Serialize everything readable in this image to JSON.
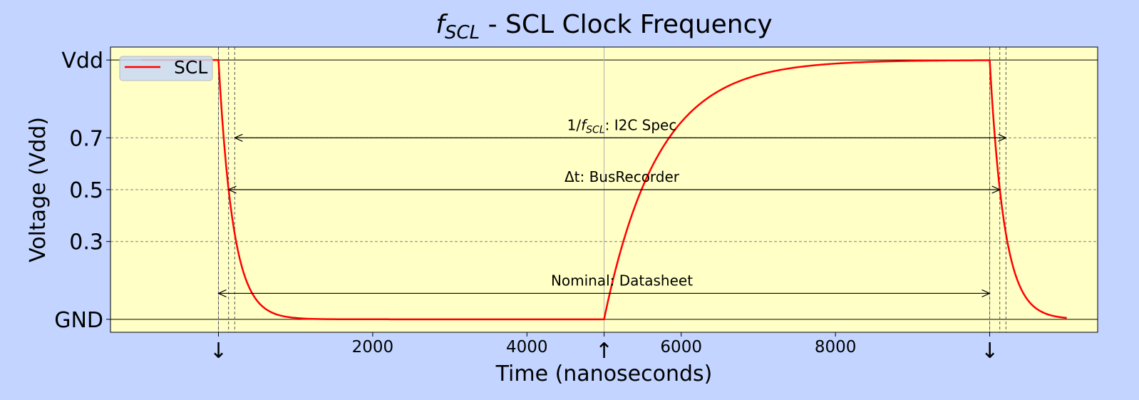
{
  "chart_data": {
    "type": "line",
    "title": {
      "italic_symbol": "f",
      "subscript": "SCL",
      "rest": " - SCL Clock Frequency"
    },
    "xlabel": "Time (nanoseconds)",
    "ylabel": "Voltage (Vdd)",
    "xlim": [
      -1400,
      11400
    ],
    "ylim": [
      -0.05,
      1.05
    ],
    "background_color": "#ffffc6",
    "figure_color": "#c2d4ff",
    "line_color": "#ff0000",
    "yticks": [
      {
        "value": 0,
        "label": "GND"
      },
      {
        "value": 0.3,
        "label": "0.3"
      },
      {
        "value": 0.5,
        "label": "0.5"
      },
      {
        "value": 0.7,
        "label": "0.7"
      },
      {
        "value": 1,
        "label": "Vdd"
      }
    ],
    "xticks": [
      {
        "value": 0,
        "label": "↓"
      },
      {
        "value": 2000,
        "label": "2000"
      },
      {
        "value": 4000,
        "label": "4000"
      },
      {
        "value": 5000,
        "label": "↑"
      },
      {
        "value": 6000,
        "label": "6000"
      },
      {
        "value": 8000,
        "label": "8000"
      },
      {
        "value": 10000,
        "label": "↓"
      }
    ],
    "solid_hlines": [
      0,
      1
    ],
    "dashed_hlines": [
      0.3,
      0.5,
      0.7
    ],
    "solid_vlines": [
      0,
      5000,
      10000
    ],
    "dashed_vlines": [
      0,
      131,
      211,
      10000,
      10131,
      10211
    ],
    "series": [
      {
        "name": "SCL",
        "segments": [
          {
            "kind": "const",
            "from": -1000,
            "to": 0,
            "value": 1
          },
          {
            "kind": "fall",
            "from": 0,
            "to": 5000,
            "tau": 190
          },
          {
            "kind": "rise",
            "from": 5000,
            "to": 10000,
            "tau": 700
          },
          {
            "kind": "fall",
            "from": 10000,
            "to": 11000,
            "tau": 190
          }
        ]
      }
    ],
    "annotations": [
      {
        "text_prefix": "1/",
        "text_symbol": "f",
        "text_subscript": "SCL",
        "text_suffix": ": I2C Spec",
        "x1": 211,
        "x2": 10211,
        "y": 0.7,
        "label_x": 5000,
        "label_y": 0.73
      },
      {
        "text": "Δt: BusRecorder",
        "x1": 131,
        "x2": 10131,
        "y": 0.5,
        "label_x": 5000,
        "label_y": 0.53
      },
      {
        "text": "Nominal: Datasheet",
        "x1": 0,
        "x2": 10000,
        "y": 0.1,
        "label_x": 5000,
        "label_y": 0.13
      }
    ],
    "legend": {
      "position": "top-left",
      "entries": [
        "SCL"
      ]
    }
  }
}
